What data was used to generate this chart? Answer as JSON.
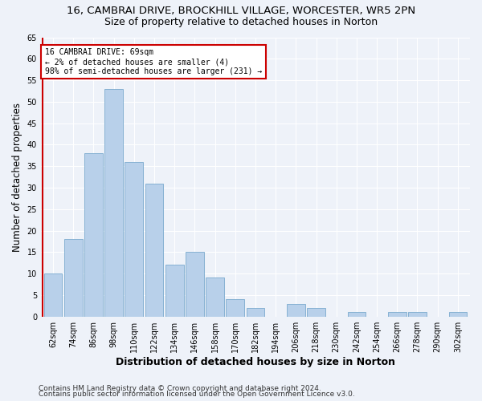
{
  "title_line1": "16, CAMBRAI DRIVE, BROCKHILL VILLAGE, WORCESTER, WR5 2PN",
  "title_line2": "Size of property relative to detached houses in Norton",
  "xlabel": "Distribution of detached houses by size in Norton",
  "ylabel": "Number of detached properties",
  "categories": [
    "62sqm",
    "74sqm",
    "86sqm",
    "98sqm",
    "110sqm",
    "122sqm",
    "134sqm",
    "146sqm",
    "158sqm",
    "170sqm",
    "182sqm",
    "194sqm",
    "206sqm",
    "218sqm",
    "230sqm",
    "242sqm",
    "254sqm",
    "266sqm",
    "278sqm",
    "290sqm",
    "302sqm"
  ],
  "values": [
    10,
    18,
    38,
    53,
    36,
    31,
    12,
    15,
    9,
    4,
    2,
    0,
    3,
    2,
    0,
    1,
    0,
    1,
    1,
    0,
    1
  ],
  "bar_color": "#b8d0ea",
  "bar_edge_color": "#7aaace",
  "property_label": "16 CAMBRAI DRIVE: 69sqm",
  "annotation_line1": "← 2% of detached houses are smaller (4)",
  "annotation_line2": "98% of semi-detached houses are larger (231) →",
  "annotation_box_color": "#ffffff",
  "annotation_box_edge": "#cc0000",
  "vline_color": "#cc0000",
  "ylim": [
    0,
    65
  ],
  "yticks": [
    0,
    5,
    10,
    15,
    20,
    25,
    30,
    35,
    40,
    45,
    50,
    55,
    60,
    65
  ],
  "footer_line1": "Contains HM Land Registry data © Crown copyright and database right 2024.",
  "footer_line2": "Contains public sector information licensed under the Open Government Licence v3.0.",
  "bg_color": "#eef2f9",
  "grid_color": "#ffffff",
  "title1_fontsize": 9.5,
  "title2_fontsize": 9,
  "axis_label_fontsize": 8.5,
  "tick_fontsize": 7,
  "footer_fontsize": 6.5
}
